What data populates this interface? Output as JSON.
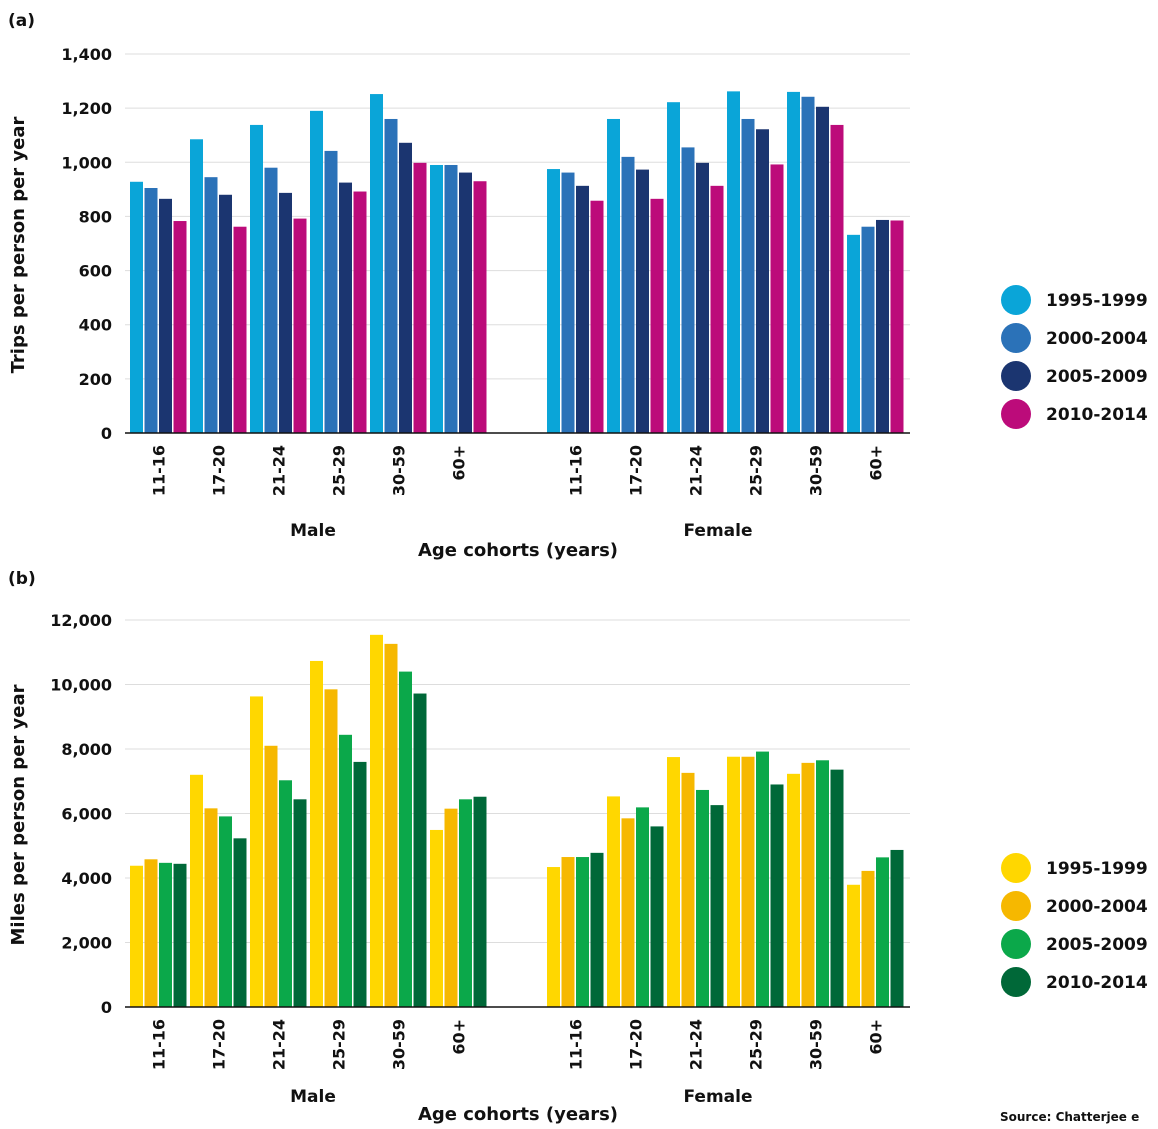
{
  "source": "Source: Chatterjee e",
  "chart_data": [
    {
      "type": "bar",
      "panel_label": "(a)",
      "ylabel": "Trips per person per year",
      "xlabel": "Age cohorts (years)",
      "ylim": [
        0,
        1400
      ],
      "yticks": [
        0,
        200,
        400,
        600,
        800,
        1000,
        1200,
        1400
      ],
      "ytick_labels": [
        "0",
        "200",
        "400",
        "600",
        "800",
        "1,000",
        "1,200",
        "1,400"
      ],
      "grid": true,
      "legend_position": "right",
      "groups": [
        {
          "label": "Male",
          "categories": [
            "11-16",
            "17-20",
            "21-24",
            "25-29",
            "30-59",
            "60+"
          ],
          "series": [
            {
              "name": "1995-1999",
              "color": "#0aa5d8",
              "values": [
                928,
                1085,
                1138,
                1190,
                1252,
                990
              ]
            },
            {
              "name": "2000-2004",
              "color": "#2b72b8",
              "values": [
                905,
                945,
                980,
                1042,
                1160,
                990
              ]
            },
            {
              "name": "2005-2009",
              "color": "#1b3570",
              "values": [
                865,
                880,
                887,
                925,
                1072,
                962
              ]
            },
            {
              "name": "2010-2014",
              "color": "#bc0b7a",
              "values": [
                783,
                762,
                792,
                892,
                998,
                930
              ]
            }
          ]
        },
        {
          "label": "Female",
          "categories": [
            "11-16",
            "17-20",
            "21-24",
            "25-29",
            "30-59",
            "60+"
          ],
          "series": [
            {
              "name": "1995-1999",
              "color": "#0aa5d8",
              "values": [
                975,
                1160,
                1222,
                1262,
                1260,
                732
              ]
            },
            {
              "name": "2000-2004",
              "color": "#2b72b8",
              "values": [
                962,
                1020,
                1055,
                1160,
                1242,
                762
              ]
            },
            {
              "name": "2005-2009",
              "color": "#1b3570",
              "values": [
                913,
                973,
                998,
                1122,
                1205,
                787
              ]
            },
            {
              "name": "2010-2014",
              "color": "#bc0b7a",
              "values": [
                858,
                865,
                913,
                992,
                1138,
                785
              ]
            }
          ]
        }
      ],
      "legend": [
        {
          "name": "1995-1999",
          "color": "#0aa5d8"
        },
        {
          "name": "2000-2004",
          "color": "#2b72b8"
        },
        {
          "name": "2005-2009",
          "color": "#1b3570"
        },
        {
          "name": "2010-2014",
          "color": "#bc0b7a"
        }
      ]
    },
    {
      "type": "bar",
      "panel_label": "(b)",
      "ylabel": "Miles per person per year",
      "xlabel": "Age cohorts (years)",
      "ylim": [
        0,
        12000
      ],
      "yticks": [
        0,
        2000,
        4000,
        6000,
        8000,
        10000,
        12000
      ],
      "ytick_labels": [
        "0",
        "2,000",
        "4,000",
        "6,000",
        "8,000",
        "10,000",
        "12,000"
      ],
      "grid": true,
      "legend_position": "right",
      "groups": [
        {
          "label": "Male",
          "categories": [
            "11-16",
            "17-20",
            "21-24",
            "25-29",
            "30-59",
            "60+"
          ],
          "series": [
            {
              "name": "1995-1999",
              "color": "#ffd700",
              "values": [
                4380,
                7200,
                9630,
                10730,
                11540,
                5490
              ]
            },
            {
              "name": "2000-2004",
              "color": "#f6b800",
              "values": [
                4580,
                6160,
                8100,
                9850,
                11260,
                6150
              ]
            },
            {
              "name": "2005-2009",
              "color": "#0ba84a",
              "values": [
                4470,
                5910,
                7030,
                8440,
                10400,
                6440
              ]
            },
            {
              "name": "2010-2014",
              "color": "#006838",
              "values": [
                4440,
                5230,
                6440,
                7600,
                9720,
                6520
              ]
            }
          ]
        },
        {
          "label": "Female",
          "categories": [
            "11-16",
            "17-20",
            "21-24",
            "25-29",
            "30-59",
            "60+"
          ],
          "series": [
            {
              "name": "1995-1999",
              "color": "#ffd700",
              "values": [
                4340,
                6530,
                7750,
                7760,
                7230,
                3790
              ]
            },
            {
              "name": "2000-2004",
              "color": "#f6b800",
              "values": [
                4650,
                5850,
                7260,
                7760,
                7570,
                4220
              ]
            },
            {
              "name": "2005-2009",
              "color": "#0ba84a",
              "values": [
                4650,
                6190,
                6730,
                7920,
                7650,
                4640
              ]
            },
            {
              "name": "2010-2014",
              "color": "#006838",
              "values": [
                4780,
                5600,
                6260,
                6900,
                7360,
                4870
              ]
            }
          ]
        }
      ],
      "legend": [
        {
          "name": "1995-1999",
          "color": "#ffd700"
        },
        {
          "name": "2000-2004",
          "color": "#f6b800"
        },
        {
          "name": "2005-2009",
          "color": "#0ba84a"
        },
        {
          "name": "2010-2014",
          "color": "#006838"
        }
      ]
    }
  ]
}
